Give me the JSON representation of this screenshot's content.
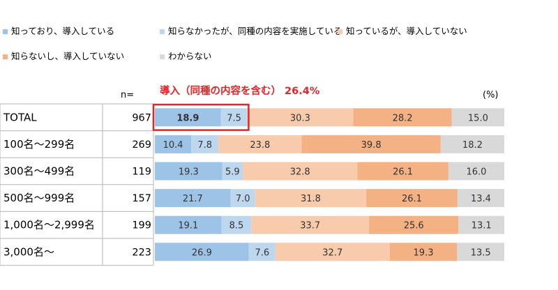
{
  "legend": [
    {
      "label": "知っており、導入している",
      "color": "#9dc3e6"
    },
    {
      "label": "知らなかったが、同種の内容を実施している",
      "color": "#bdd7ee"
    },
    {
      "label": "知っているが、導入していない",
      "color": "#f8cbad"
    },
    {
      "label": "知らないし、導入していない",
      "color": "#f4b183"
    },
    {
      "label": "わからない",
      "color": "#d9d9d9"
    }
  ],
  "title": "導入（同種の内容を含む） 26.4%",
  "n_header": "n=",
  "unit": "(%)",
  "highlight_color": "#e8242a",
  "chart_data": {
    "type": "bar",
    "orientation": "horizontal",
    "stacked": true,
    "unit": "%",
    "categories": [
      "TOTAL",
      "100名～299名",
      "300名～499名",
      "500名～999名",
      "1,000名～2,999名",
      "3,000名～"
    ],
    "n": [
      "967",
      "269",
      "119",
      "157",
      "199",
      "223"
    ],
    "series": [
      {
        "name": "知っており、導入している",
        "values": [
          18.9,
          10.4,
          19.3,
          21.7,
          19.1,
          26.9
        ],
        "labels": [
          "18.9",
          "10.4",
          "19.3",
          "21.7",
          "19.1",
          "26.9"
        ]
      },
      {
        "name": "知らなかったが、同種の内容を実施している",
        "values": [
          7.5,
          7.8,
          5.9,
          7.0,
          8.5,
          7.6
        ],
        "labels": [
          "7.5",
          "7.8",
          "5.9",
          "7.0",
          "8.5",
          "7.6"
        ]
      },
      {
        "name": "知っているが、導入していない",
        "values": [
          30.3,
          23.8,
          32.8,
          31.8,
          33.7,
          32.7
        ],
        "labels": [
          "30.3",
          "23.8",
          "32.8",
          "31.8",
          "33.7",
          "32.7"
        ]
      },
      {
        "name": "知らないし、導入していない",
        "values": [
          28.2,
          39.8,
          26.1,
          26.1,
          25.6,
          19.3
        ],
        "labels": [
          "28.2",
          "39.8",
          "26.1",
          "26.1",
          "25.6",
          "19.3"
        ]
      },
      {
        "name": "わからない",
        "values": [
          15.0,
          18.2,
          16.0,
          13.4,
          13.1,
          13.5
        ],
        "labels": [
          "15.0",
          "18.2",
          "16.0",
          "13.4",
          "13.1",
          "13.5"
        ]
      }
    ],
    "highlight": {
      "row": 0,
      "series": [
        0,
        1
      ]
    }
  }
}
